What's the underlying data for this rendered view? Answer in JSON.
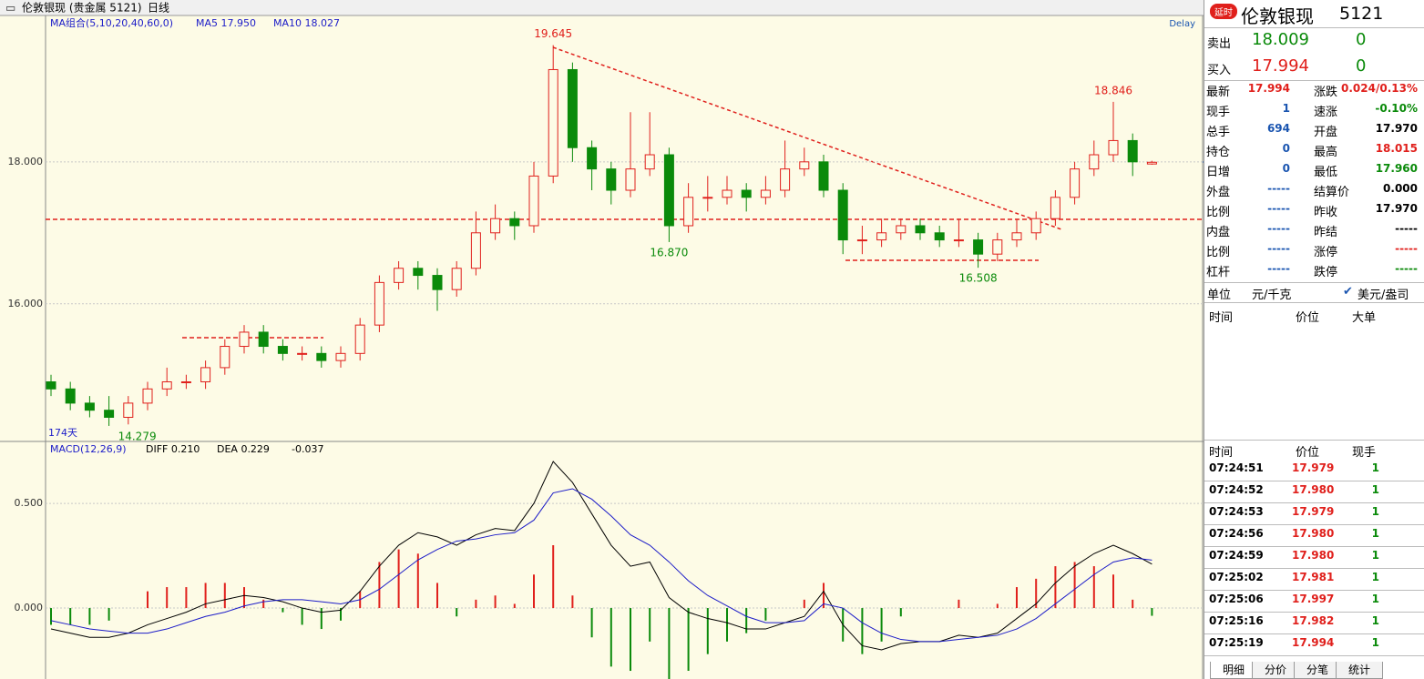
{
  "toolbar": {
    "symbol": "伦敦银现 (贵金属 5121)",
    "period": "日线",
    "delay": "Delay"
  },
  "chart_data": {
    "type": "candlestick",
    "legend": [
      "MA组合(5,10,20,40,60,0)",
      "MA5 17.950",
      "MA10 18.027"
    ],
    "days_label": "174天",
    "ylim": [
      14.06,
      20.05
    ],
    "yticks": [
      {
        "value": 18,
        "label": "18.000"
      },
      {
        "value": 16,
        "label": "16.000"
      }
    ],
    "grid": true,
    "up_color": "#e0201c",
    "down_color": "#0a8a0a",
    "ohlc": [
      [
        14.9,
        15.0,
        14.7,
        14.8
      ],
      [
        14.8,
        14.9,
        14.5,
        14.6
      ],
      [
        14.6,
        14.7,
        14.4,
        14.5
      ],
      [
        14.5,
        14.7,
        14.279,
        14.4
      ],
      [
        14.4,
        14.7,
        14.3,
        14.6
      ],
      [
        14.6,
        14.9,
        14.5,
        14.8
      ],
      [
        14.8,
        15.1,
        14.7,
        14.9
      ],
      [
        14.9,
        15.0,
        14.8,
        14.9
      ],
      [
        14.9,
        15.2,
        14.8,
        15.1
      ],
      [
        15.1,
        15.5,
        15.0,
        15.4
      ],
      [
        15.4,
        15.7,
        15.3,
        15.6
      ],
      [
        15.6,
        15.7,
        15.3,
        15.4
      ],
      [
        15.4,
        15.5,
        15.2,
        15.3
      ],
      [
        15.3,
        15.4,
        15.2,
        15.3
      ],
      [
        15.3,
        15.4,
        15.1,
        15.2
      ],
      [
        15.2,
        15.4,
        15.1,
        15.3
      ],
      [
        15.3,
        15.8,
        15.2,
        15.7
      ],
      [
        15.7,
        16.4,
        15.6,
        16.3
      ],
      [
        16.3,
        16.6,
        16.2,
        16.5
      ],
      [
        16.5,
        16.6,
        16.2,
        16.4
      ],
      [
        16.4,
        16.5,
        15.9,
        16.2
      ],
      [
        16.2,
        16.6,
        16.1,
        16.5
      ],
      [
        16.5,
        17.3,
        16.4,
        17.0
      ],
      [
        17.0,
        17.4,
        16.9,
        17.2
      ],
      [
        17.2,
        17.3,
        16.9,
        17.1
      ],
      [
        17.1,
        18.0,
        17.0,
        17.8
      ],
      [
        17.8,
        19.645,
        17.7,
        19.3
      ],
      [
        19.3,
        19.4,
        18.0,
        18.2
      ],
      [
        18.2,
        18.3,
        17.6,
        17.9
      ],
      [
        17.9,
        18.0,
        17.4,
        17.6
      ],
      [
        17.6,
        18.7,
        17.5,
        17.9
      ],
      [
        17.9,
        18.7,
        17.8,
        18.1
      ],
      [
        18.1,
        18.2,
        16.87,
        17.1
      ],
      [
        17.1,
        17.7,
        17.0,
        17.5
      ],
      [
        17.5,
        17.8,
        17.3,
        17.5
      ],
      [
        17.5,
        17.8,
        17.4,
        17.6
      ],
      [
        17.6,
        17.7,
        17.3,
        17.5
      ],
      [
        17.5,
        17.8,
        17.4,
        17.6
      ],
      [
        17.6,
        18.3,
        17.5,
        17.9
      ],
      [
        17.9,
        18.2,
        17.8,
        18.0
      ],
      [
        18.0,
        18.1,
        17.5,
        17.6
      ],
      [
        17.6,
        17.7,
        16.7,
        16.9
      ],
      [
        16.9,
        17.1,
        16.7,
        16.9
      ],
      [
        16.9,
        17.2,
        16.8,
        17.0
      ],
      [
        17.0,
        17.2,
        16.9,
        17.1
      ],
      [
        17.1,
        17.2,
        16.9,
        17.0
      ],
      [
        17.0,
        17.1,
        16.8,
        16.9
      ],
      [
        16.9,
        17.2,
        16.8,
        16.9
      ],
      [
        16.9,
        17.0,
        16.508,
        16.7
      ],
      [
        16.7,
        17.0,
        16.6,
        16.9
      ],
      [
        16.9,
        17.2,
        16.8,
        17.0
      ],
      [
        17.0,
        17.3,
        16.9,
        17.2
      ],
      [
        17.2,
        17.6,
        17.1,
        17.5
      ],
      [
        17.5,
        18.0,
        17.4,
        17.9
      ],
      [
        17.9,
        18.3,
        17.8,
        18.1
      ],
      [
        18.1,
        18.846,
        18.0,
        18.3
      ],
      [
        18.3,
        18.4,
        17.8,
        18.0
      ],
      [
        17.97,
        18.015,
        17.96,
        17.994
      ]
    ],
    "annotations": [
      {
        "value": 19.645,
        "label": "19.645"
      },
      {
        "value": 16.87,
        "label": "16.870"
      },
      {
        "value": 16.508,
        "label": "16.508"
      },
      {
        "value": 18.846,
        "label": "18.846"
      },
      {
        "value": 14.279,
        "label": "14.279"
      }
    ]
  },
  "macd_data": {
    "type": "macd",
    "legend": [
      "MACD(12,26,9)",
      "DIFF 0.210",
      "DEA 0.229",
      "-0.037"
    ],
    "ylim": [
      -0.339,
      0.796
    ],
    "yticks": [
      {
        "value": 0.5,
        "label": "0.500"
      },
      {
        "value": 0,
        "label": "0.000"
      }
    ],
    "series": [
      {
        "name": "DIFF",
        "color": "#000000",
        "values": [
          -0.1,
          -0.12,
          -0.14,
          -0.14,
          -0.12,
          -0.08,
          -0.05,
          -0.02,
          0.02,
          0.04,
          0.06,
          0.05,
          0.03,
          0.0,
          -0.02,
          -0.01,
          0.08,
          0.2,
          0.3,
          0.36,
          0.34,
          0.3,
          0.35,
          0.38,
          0.37,
          0.5,
          0.7,
          0.6,
          0.45,
          0.3,
          0.2,
          0.22,
          0.05,
          -0.02,
          -0.05,
          -0.07,
          -0.1,
          -0.1,
          -0.07,
          -0.04,
          0.08,
          -0.08,
          -0.18,
          -0.2,
          -0.17,
          -0.16,
          -0.16,
          -0.13,
          -0.14,
          -0.12,
          -0.05,
          0.02,
          0.12,
          0.2,
          0.26,
          0.3,
          0.26,
          0.21
        ]
      },
      {
        "name": "DEA",
        "color": "#1c1cc8",
        "values": [
          -0.06,
          -0.08,
          -0.1,
          -0.11,
          -0.12,
          -0.12,
          -0.1,
          -0.07,
          -0.04,
          -0.02,
          0.01,
          0.03,
          0.04,
          0.04,
          0.03,
          0.02,
          0.04,
          0.09,
          0.16,
          0.23,
          0.28,
          0.32,
          0.33,
          0.35,
          0.36,
          0.42,
          0.55,
          0.57,
          0.52,
          0.44,
          0.35,
          0.3,
          0.22,
          0.13,
          0.06,
          0.01,
          -0.04,
          -0.07,
          -0.07,
          -0.06,
          0.02,
          0.0,
          -0.07,
          -0.12,
          -0.15,
          -0.16,
          -0.16,
          -0.15,
          -0.14,
          -0.13,
          -0.1,
          -0.05,
          0.02,
          0.09,
          0.16,
          0.22,
          0.24,
          0.229
        ]
      }
    ],
    "histogram": [
      -0.08,
      -0.08,
      -0.08,
      -0.06,
      0.0,
      0.08,
      0.1,
      0.1,
      0.12,
      0.12,
      0.1,
      0.04,
      -0.02,
      -0.08,
      -0.1,
      -0.06,
      0.08,
      0.22,
      0.28,
      0.26,
      0.12,
      -0.04,
      0.04,
      0.06,
      0.02,
      0.16,
      0.3,
      0.06,
      -0.14,
      -0.28,
      -0.3,
      -0.16,
      -0.34,
      -0.3,
      -0.22,
      -0.16,
      -0.12,
      -0.06,
      0.0,
      0.04,
      0.12,
      -0.16,
      -0.22,
      -0.16,
      -0.04,
      0.0,
      0.0,
      0.04,
      0.0,
      0.02,
      0.1,
      0.14,
      0.2,
      0.22,
      0.2,
      0.16,
      0.04,
      -0.037
    ]
  },
  "quote": {
    "badge": "延时",
    "name": "伦敦银现",
    "code": "5121",
    "sell": [
      "卖出",
      "18.009",
      "0"
    ],
    "buy": [
      "买入",
      "17.994",
      "0"
    ],
    "stats": [
      [
        [
          "最新",
          "17.994"
        ],
        [
          "涨跌",
          "0.024/0.13%"
        ]
      ],
      [
        [
          "现手",
          "1"
        ],
        [
          "速涨",
          "-0.10%"
        ]
      ],
      [
        [
          "总手",
          "694"
        ],
        [
          "开盘",
          "17.970"
        ]
      ],
      [
        [
          "持仓",
          "0"
        ],
        [
          "最高",
          "18.015"
        ]
      ],
      [
        [
          "日增",
          "0"
        ],
        [
          "最低",
          "17.960"
        ]
      ],
      [
        [
          "外盘",
          "-----"
        ],
        [
          "结算价",
          "0.000"
        ]
      ],
      [
        [
          "比例",
          "-----"
        ],
        [
          "昨收",
          "17.970"
        ]
      ],
      [
        [
          "内盘",
          "-----"
        ],
        [
          "昨结",
          "-----"
        ]
      ],
      [
        [
          "比例",
          "-----"
        ],
        [
          "涨停",
          "-----"
        ]
      ],
      [
        [
          "杠杆",
          "-----"
        ],
        [
          "跌停",
          "-----"
        ]
      ]
    ],
    "unit": [
      "单位",
      "元/千克",
      "美元/盎司"
    ],
    "big_header": [
      "时间",
      "价位",
      "大单"
    ],
    "ticks_header": [
      "时间",
      "价位",
      "现手"
    ],
    "ticks": [
      [
        "07:24:51",
        "17.979",
        "1"
      ],
      [
        "07:24:52",
        "17.980",
        "1"
      ],
      [
        "07:24:53",
        "17.979",
        "1"
      ],
      [
        "07:24:56",
        "17.980",
        "1"
      ],
      [
        "07:24:59",
        "17.980",
        "1"
      ],
      [
        "07:25:02",
        "17.981",
        "1"
      ],
      [
        "07:25:06",
        "17.997",
        "1"
      ],
      [
        "07:25:16",
        "17.982",
        "1"
      ],
      [
        "07:25:19",
        "17.994",
        "1"
      ]
    ],
    "tabs": [
      "明细",
      "分价",
      "分笔",
      "统计"
    ]
  }
}
